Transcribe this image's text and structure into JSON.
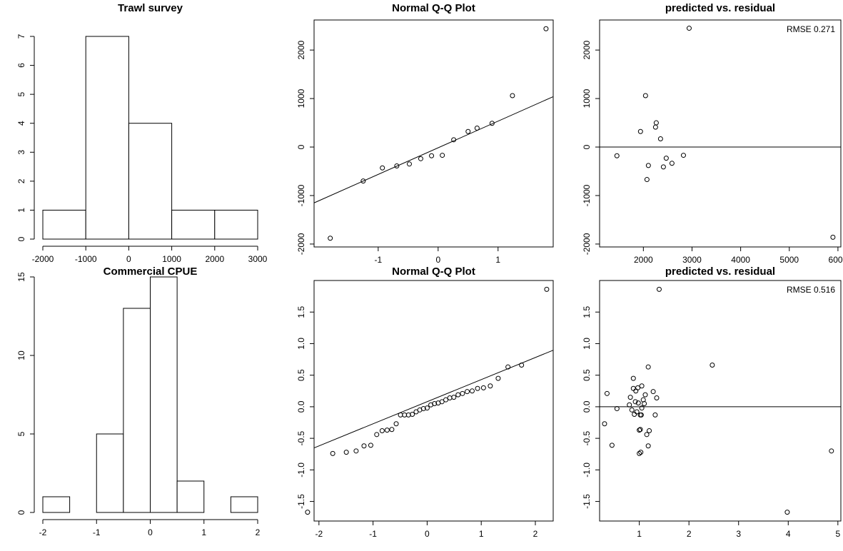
{
  "chart_data": [
    {
      "type": "histogram",
      "title": "Trawl survey",
      "bins": [
        -2000,
        -1000,
        0,
        1000,
        2000,
        3000
      ],
      "counts": [
        1,
        7,
        4,
        1,
        1
      ],
      "xlim": [
        -2000,
        3000
      ],
      "ylim": [
        0,
        7
      ],
      "xticks": [
        -2000,
        -1000,
        0,
        1000,
        2000,
        3000
      ],
      "yticks": [
        0,
        1,
        2,
        3,
        4,
        5,
        6,
        7
      ]
    },
    {
      "type": "scatter",
      "title": "Normal Q-Q Plot",
      "x": [
        -1.8,
        -1.25,
        -0.93,
        -0.69,
        -0.48,
        -0.29,
        -0.11,
        0.07,
        0.26,
        0.5,
        0.65,
        0.9,
        1.24,
        1.8
      ],
      "y": [
        -1880,
        -700,
        -430,
        -390,
        -350,
        -240,
        -180,
        -170,
        150,
        320,
        390,
        490,
        1060,
        2440
      ],
      "abline": {
        "intercept": -15,
        "slope": 549
      },
      "xlim": [
        -2.07,
        1.92
      ],
      "ylim": [
        -2060,
        2620
      ],
      "xticks": [
        -1,
        0,
        1
      ],
      "yticks": [
        -2000,
        -1000,
        0,
        1000,
        2000
      ]
    },
    {
      "type": "scatter",
      "title": "predicted vs. residual",
      "x": [
        1456,
        1941,
        2044,
        2265,
        2250,
        2353,
        2103,
        2412,
        2470,
        2588,
        2074,
        2824,
        2941,
        5897
      ],
      "y": [
        -180,
        320,
        1060,
        500,
        410,
        170,
        -380,
        -410,
        -230,
        -335,
        -670,
        -170,
        2450,
        -1860
      ],
      "hline": 0,
      "annotation": "RMSE 0.271",
      "xlim": [
        1100,
        6060
      ],
      "ylim": [
        -2060,
        2620
      ],
      "xticks": [
        2000,
        3000,
        4000,
        5000,
        6000
      ],
      "yticks": [
        -2000,
        -1000,
        0,
        1000,
        2000
      ]
    },
    {
      "type": "histogram",
      "title": "Commercial CPUE",
      "bins": [
        -2,
        -1.5,
        -1,
        -0.5,
        0,
        0.5,
        1,
        1.5,
        2
      ],
      "counts": [
        1,
        0,
        5,
        13,
        15,
        2,
        0,
        1
      ],
      "xlim": [
        -2,
        2
      ],
      "ylim": [
        0,
        15
      ],
      "xticks": [
        -2,
        -1,
        0,
        1,
        2
      ],
      "yticks": [
        0,
        5,
        10,
        15
      ]
    },
    {
      "type": "scatter",
      "title": "Normal Q-Q Plot",
      "x": [
        -2.21,
        -1.745,
        -1.494,
        -1.313,
        -1.167,
        -1.042,
        -0.932,
        -0.832,
        -0.74,
        -0.653,
        -0.572,
        -0.493,
        -0.418,
        -0.345,
        -0.274,
        -0.204,
        -0.136,
        -0.068,
        0,
        0.068,
        0.136,
        0.204,
        0.274,
        0.345,
        0.418,
        0.493,
        0.572,
        0.653,
        0.74,
        0.832,
        0.932,
        1.042,
        1.167,
        1.313,
        1.494,
        1.745,
        2.21
      ],
      "y": [
        -1.67,
        -0.74,
        -0.72,
        -0.7,
        -0.62,
        -0.61,
        -0.44,
        -0.38,
        -0.37,
        -0.36,
        -0.27,
        -0.13,
        -0.13,
        -0.13,
        -0.12,
        -0.08,
        -0.05,
        -0.03,
        -0.02,
        0.03,
        0.05,
        0.06,
        0.08,
        0.11,
        0.14,
        0.15,
        0.19,
        0.21,
        0.24,
        0.25,
        0.29,
        0.3,
        0.33,
        0.45,
        0.63,
        0.66,
        1.86
      ],
      "abline": {
        "intercept": 0.08,
        "slope": 0.35
      },
      "xlim": [
        -2.09,
        2.33
      ],
      "ylim": [
        -1.81,
        2.0
      ],
      "xticks": [
        -2,
        -1,
        0,
        1,
        2
      ],
      "yticks": [
        -1.5,
        {
          "value": -1,
          "label": "-1.0"
        },
        -0.5,
        {
          "value": 0,
          "label": "0.0"
        },
        0.5,
        {
          "value": 1,
          "label": "1.0"
        },
        1.5
      ]
    },
    {
      "type": "scatter",
      "title": "predicted vs. residual",
      "x": [
        3.98,
        1.0,
        1.03,
        4.87,
        1.18,
        0.45,
        1.15,
        1.2,
        1.0,
        1.02,
        0.3,
        1.02,
        1.04,
        1.32,
        0.9,
        0.95,
        0.85,
        0.55,
        1.05,
        0.8,
        1.1,
        0.98,
        0.92,
        1.08,
        1.35,
        0.82,
        1.12,
        0.35,
        1.28,
        0.93,
        0.88,
        0.97,
        1.05,
        0.88,
        1.18,
        2.47,
        1.4
      ],
      "y": [
        -1.67,
        -0.74,
        -0.72,
        -0.7,
        -0.62,
        -0.61,
        -0.44,
        -0.38,
        -0.37,
        -0.36,
        -0.27,
        -0.13,
        -0.13,
        -0.13,
        -0.12,
        -0.08,
        -0.05,
        -0.03,
        -0.02,
        0.03,
        0.05,
        0.06,
        0.08,
        0.11,
        0.14,
        0.15,
        0.19,
        0.21,
        0.24,
        0.25,
        0.29,
        0.3,
        0.33,
        0.45,
        0.63,
        0.66,
        1.86
      ],
      "hline": 0,
      "annotation": "RMSE 0.516",
      "xlim": [
        0.2,
        5.06
      ],
      "ylim": [
        -1.81,
        2.0
      ],
      "xticks": [
        1,
        2,
        3,
        4,
        5
      ],
      "yticks": [
        -1.5,
        {
          "value": -1,
          "label": "-1.0"
        },
        -0.5,
        {
          "value": 0,
          "label": "0.0"
        },
        0.5,
        {
          "value": 1,
          "label": "1.0"
        },
        1.5
      ]
    }
  ]
}
